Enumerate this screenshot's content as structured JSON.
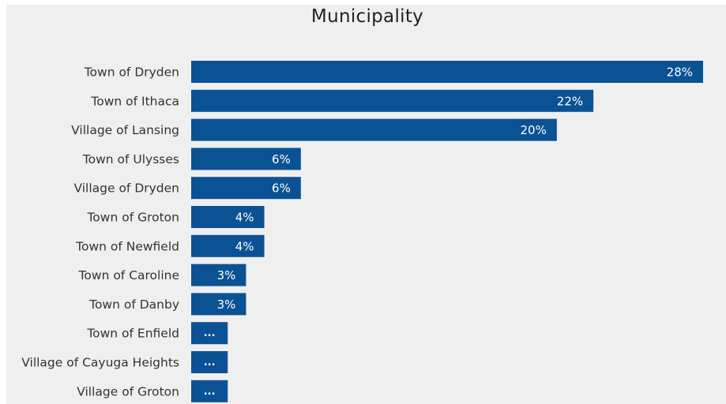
{
  "chart_data": {
    "type": "bar",
    "orientation": "horizontal",
    "title": "Municipality",
    "categories": [
      "Town of Dryden",
      "Town of Ithaca",
      "Village of Lansing",
      "Town of Ulysses",
      "Village of Dryden",
      "Town of Groton",
      "Town of Newfield",
      "Town of Caroline",
      "Town of Danby",
      "Town of Enfield",
      "Village of Cayuga Heights",
      "Village of Groton"
    ],
    "values": [
      28,
      22,
      20,
      6,
      6,
      4,
      4,
      3,
      3,
      2,
      2,
      2
    ],
    "value_labels": [
      "28%",
      "22%",
      "20%",
      "6%",
      "6%",
      "4%",
      "4%",
      "3%",
      "3%",
      "...",
      "...",
      "..."
    ],
    "unit": "%",
    "xlim": [
      0,
      28
    ],
    "bar_color": "#0b5294",
    "background_color": "#efefef",
    "grid": false,
    "legend": "none"
  }
}
